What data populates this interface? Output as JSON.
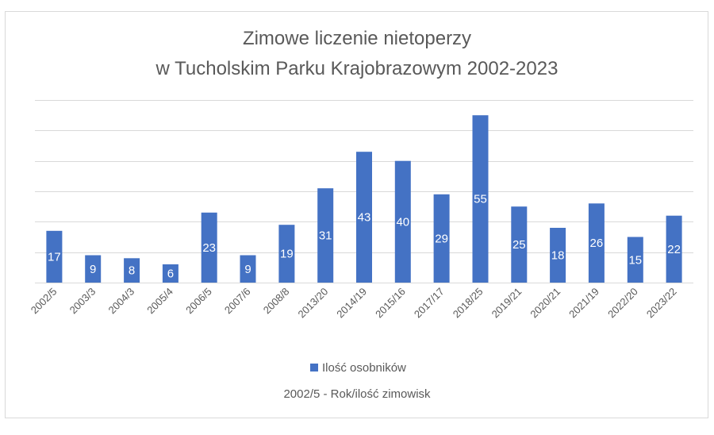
{
  "chart_data": {
    "type": "bar",
    "title_lines": [
      "Zimowe liczenie nietoperzy",
      "w Tucholskim Parku Krajobrazowym 2002-2023"
    ],
    "categories": [
      "2002/5",
      "2003/3",
      "2004/3",
      "2005/4",
      "2006/5",
      "2007/6",
      "2008/8",
      "2013/20",
      "2014/19",
      "2015/16",
      "2017/17",
      "2018/25",
      "2019/21",
      "2020/21",
      "2021/19",
      "2022/20",
      "2023/22"
    ],
    "series": [
      {
        "name": "Ilość osobników",
        "values": [
          17,
          9,
          8,
          6,
          23,
          9,
          19,
          31,
          43,
          40,
          29,
          55,
          25,
          18,
          26,
          15,
          22
        ]
      }
    ],
    "ylim": [
      0,
      60
    ],
    "gridlines": true,
    "y_tick_labels_visible": false,
    "data_labels": true,
    "legend_position": "bottom",
    "note": "2002/5 - Rok/ilość zimowisk",
    "colors": {
      "bar": "#4472C4",
      "grid": "#D9D9D9",
      "text": "#595959",
      "label": "#ffffff",
      "border": "#D9D9D9"
    }
  }
}
